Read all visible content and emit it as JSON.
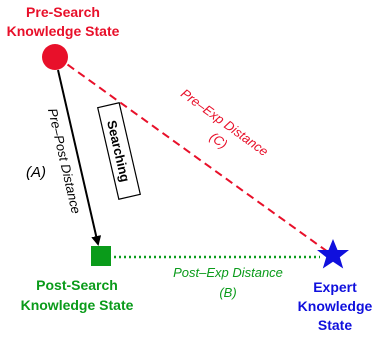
{
  "diagram": {
    "pre_search": {
      "label_line1": "Pre-Search",
      "label_line2": "Knowledge State",
      "color": "#e8102a"
    },
    "post_search": {
      "label_line1": "Post-Search",
      "label_line2": "Knowledge State",
      "color": "#0a9b1a"
    },
    "expert": {
      "label_line1": "Expert",
      "label_line2": "Knowledge",
      "label_line3": "State",
      "color": "#1010dd"
    },
    "edge_pre_post": {
      "label": "Pre–Post Distance",
      "tag": "(A)",
      "color": "#000000"
    },
    "edge_pre_exp": {
      "label": "Pre–Exp Distance",
      "tag": "(C)",
      "color": "#e8102a"
    },
    "edge_post_exp": {
      "label": "Post–Exp Distance",
      "tag": "(B)",
      "color": "#0a9b1a"
    },
    "process_box": {
      "label": "Searching"
    }
  }
}
